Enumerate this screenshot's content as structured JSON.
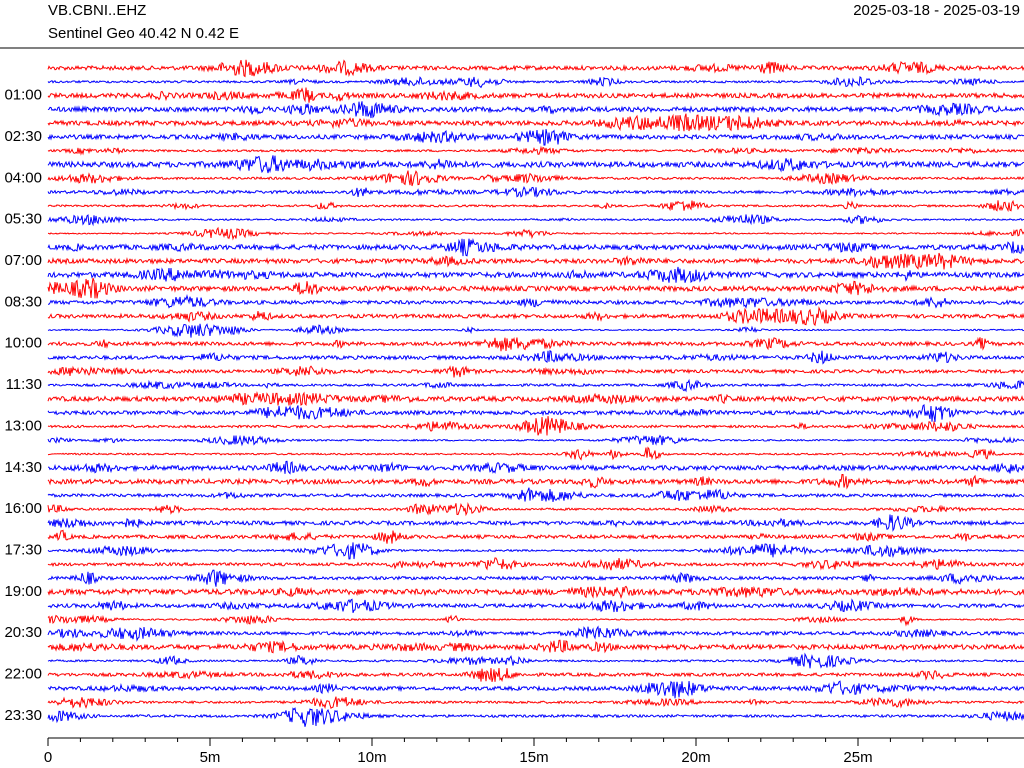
{
  "chart_data": {
    "type": "helicorder",
    "title": "VB.CBNI..EHZ",
    "subtitle": "Sentinel Geo  40.42 N 0.42 E",
    "date_range": "2025-03-18 - 2025-03-19",
    "trace_colors": [
      "#ff0000",
      "#0000ff"
    ],
    "xlim": [
      0,
      30
    ],
    "xticks": [
      0,
      {
        "value": 5,
        "label": "5m"
      },
      {
        "value": 10,
        "label": "10m"
      },
      {
        "value": 15,
        "label": "15m"
      },
      {
        "value": 20,
        "label": "20m"
      },
      {
        "value": 25,
        "label": "25m"
      }
    ],
    "minor_xticks": [
      1,
      2,
      3,
      4,
      6,
      7,
      8,
      9,
      11,
      12,
      13,
      14,
      16,
      17,
      18,
      19,
      21,
      22,
      23,
      24,
      26,
      27,
      28,
      29
    ],
    "ylim": [
      0,
      23.5
    ],
    "yticks": [
      {
        "value": 1,
        "label": "01:00"
      },
      {
        "value": 2.5,
        "label": "02:30"
      },
      {
        "value": 4,
        "label": "04:00"
      },
      {
        "value": 5.5,
        "label": "05:30"
      },
      {
        "value": 7,
        "label": "07:00"
      },
      {
        "value": 8.5,
        "label": "08:30"
      },
      {
        "value": 10,
        "label": "10:00"
      },
      {
        "value": 11.5,
        "label": "11:30"
      },
      {
        "value": 13,
        "label": "13:00"
      },
      {
        "value": 14.5,
        "label": "14:30"
      },
      {
        "value": 16,
        "label": "16:00"
      },
      {
        "value": 17.5,
        "label": "17:30"
      },
      {
        "value": 19,
        "label": "19:00"
      },
      {
        "value": 20.5,
        "label": "20:30"
      },
      {
        "value": 22,
        "label": "22:00"
      },
      {
        "value": 23.5,
        "label": "23:30"
      }
    ]
  }
}
